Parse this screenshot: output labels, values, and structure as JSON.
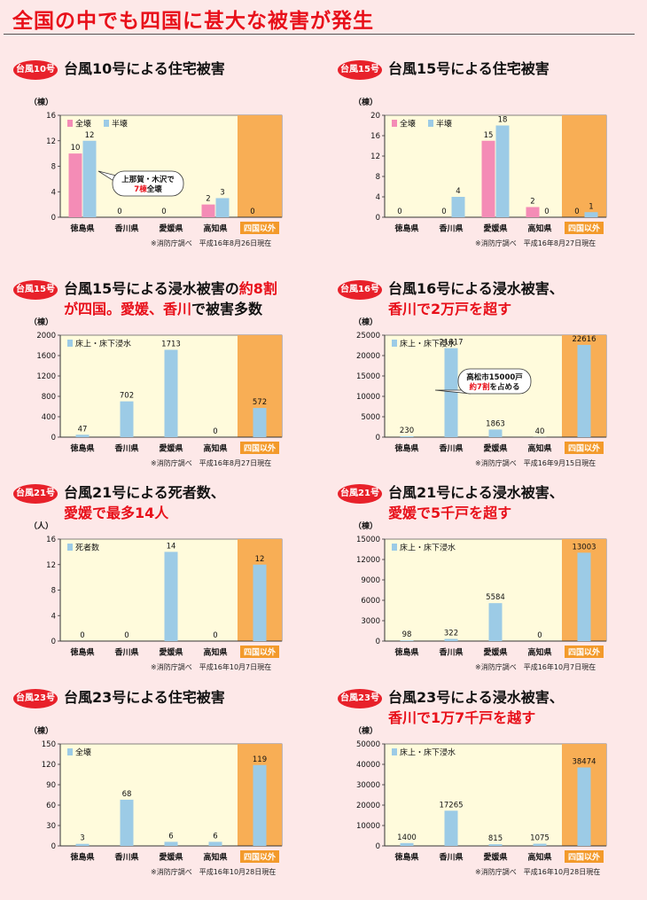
{
  "page_title": "全国の中でも四国に甚大な被害が発生",
  "source_prefix": "※消防庁調べ",
  "panels": [
    {
      "badge": "台風10号",
      "heading_parts": [
        {
          "t": "台風10号による住宅被害",
          "red": false
        }
      ],
      "source_date": "平成16年8月26日現在",
      "chart_data": {
        "type": "bar",
        "unit_label": "（棟）",
        "categories": [
          "徳島県",
          "香川県",
          "愛媛県",
          "高知県",
          "四国以外"
        ],
        "ylim": [
          0,
          16
        ],
        "yticks": [
          0,
          4,
          8,
          12,
          16
        ],
        "series": [
          {
            "name": "全壊",
            "color": "#f48cb6",
            "values": [
              10,
              0,
              0,
              2,
              0
            ]
          },
          {
            "name": "半壊",
            "color": "#9ccbe6",
            "values": [
              12,
              null,
              null,
              3,
              null
            ]
          }
        ],
        "annotation": {
          "lines": [
            [
              {
                "t": "上那賀・木沢で",
                "red": false
              }
            ],
            [
              {
                "t": "7棟",
                "red": true
              },
              {
                "t": "全壊",
                "red": false
              }
            ]
          ]
        }
      }
    },
    {
      "badge": "台風15号",
      "heading_parts": [
        {
          "t": "台風15号による住宅被害",
          "red": false
        }
      ],
      "source_date": "平成16年8月27日現在",
      "chart_data": {
        "type": "bar",
        "unit_label": "（棟）",
        "categories": [
          "徳島県",
          "香川県",
          "愛媛県",
          "高知県",
          "四国以外"
        ],
        "ylim": [
          0,
          20
        ],
        "yticks": [
          0,
          4,
          8,
          12,
          16,
          20
        ],
        "series": [
          {
            "name": "全壊",
            "color": "#f48cb6",
            "values": [
              0,
              0,
              15,
              2,
              0
            ]
          },
          {
            "name": "半壊",
            "color": "#9ccbe6",
            "values": [
              null,
              4,
              18,
              0,
              1
            ]
          }
        ]
      }
    },
    {
      "badge": "台風15号",
      "heading_parts": [
        {
          "t": "台風15号による浸水被害の",
          "red": false
        },
        {
          "t": "約8割",
          "red": true
        },
        {
          "t": "\n",
          "red": false
        },
        {
          "t": "が四国。愛媛、香川",
          "red": true
        },
        {
          "t": "で被害多数",
          "red": false
        }
      ],
      "source_date": "平成16年8月27日現在",
      "chart_data": {
        "type": "bar",
        "unit_label": "（棟）",
        "categories": [
          "徳島県",
          "香川県",
          "愛媛県",
          "高知県",
          "四国以外"
        ],
        "ylim": [
          0,
          2000
        ],
        "yticks": [
          0,
          400,
          800,
          1200,
          1600,
          2000
        ],
        "series": [
          {
            "name": "床上・床下浸水",
            "color": "#9ccbe6",
            "values": [
              47,
              702,
              1713,
              0,
              572
            ]
          }
        ]
      }
    },
    {
      "badge": "台風16号",
      "heading_parts": [
        {
          "t": "台風16号による浸水被害、",
          "red": false
        },
        {
          "t": "\n",
          "red": false
        },
        {
          "t": "香川で2万戸を超す",
          "red": true
        }
      ],
      "source_date": "平成16年9月15日現在",
      "chart_data": {
        "type": "bar",
        "unit_label": "（棟）",
        "categories": [
          "徳島県",
          "香川県",
          "愛媛県",
          "高知県",
          "四国以外"
        ],
        "ylim": [
          0,
          25000
        ],
        "yticks": [
          0,
          5000,
          10000,
          15000,
          20000,
          25000
        ],
        "series": [
          {
            "name": "床上・床下浸水",
            "color": "#9ccbe6",
            "values": [
              230,
              21817,
              1863,
              40,
              22616
            ]
          }
        ],
        "annotation": {
          "lines": [
            [
              {
                "t": "高松市15000戸",
                "red": false
              }
            ],
            [
              {
                "t": "約7割",
                "red": true
              },
              {
                "t": "を占める",
                "red": false
              }
            ]
          ]
        }
      }
    },
    {
      "badge": "台風21号",
      "heading_parts": [
        {
          "t": "台風21号による死者数、",
          "red": false
        },
        {
          "t": "\n",
          "red": false
        },
        {
          "t": "愛媛で最多14人",
          "red": true
        }
      ],
      "source_date": "平成16年10月7日現在",
      "chart_data": {
        "type": "bar",
        "unit_label": "（人）",
        "categories": [
          "徳島県",
          "香川県",
          "愛媛県",
          "高知県",
          "四国以外"
        ],
        "ylim": [
          0,
          16
        ],
        "yticks": [
          0,
          4,
          8,
          12,
          16
        ],
        "series": [
          {
            "name": "死者数",
            "color": "#9ccbe6",
            "values": [
              0,
              0,
              14,
              0,
              12
            ]
          }
        ]
      }
    },
    {
      "badge": "台風21号",
      "heading_parts": [
        {
          "t": "台風21号による浸水被害、",
          "red": false
        },
        {
          "t": "\n",
          "red": false
        },
        {
          "t": "愛媛で5千戸を超す",
          "red": true
        }
      ],
      "source_date": "平成16年10月7日現在",
      "chart_data": {
        "type": "bar",
        "unit_label": "（棟）",
        "categories": [
          "徳島県",
          "香川県",
          "愛媛県",
          "高知県",
          "四国以外"
        ],
        "ylim": [
          0,
          15000
        ],
        "yticks": [
          0,
          3000,
          6000,
          9000,
          12000,
          15000
        ],
        "series": [
          {
            "name": "床上・床下浸水",
            "color": "#9ccbe6",
            "values": [
              98,
              322,
              5584,
              0,
              13003
            ]
          }
        ]
      }
    },
    {
      "badge": "台風23号",
      "heading_parts": [
        {
          "t": "台風23号による住宅被害",
          "red": false
        }
      ],
      "source_date": "平成16年10月28日現在",
      "chart_data": {
        "type": "bar",
        "unit_label": "（棟）",
        "categories": [
          "徳島県",
          "香川県",
          "愛媛県",
          "高知県",
          "四国以外"
        ],
        "ylim": [
          0,
          150
        ],
        "yticks": [
          0,
          30,
          60,
          90,
          120,
          150
        ],
        "series": [
          {
            "name": "全壊",
            "color": "#9ccbe6",
            "values": [
              3,
              68,
              6,
              6,
              119
            ]
          }
        ]
      }
    },
    {
      "badge": "台風23号",
      "heading_parts": [
        {
          "t": "台風23号による浸水被害、",
          "red": false
        },
        {
          "t": "\n",
          "red": false
        },
        {
          "t": "香川で1万7千戸を越す",
          "red": true
        }
      ],
      "source_date": "平成16年10月28日現在",
      "chart_data": {
        "type": "bar",
        "unit_label": "（棟）",
        "categories": [
          "徳島県",
          "香川県",
          "愛媛県",
          "高知県",
          "四国以外"
        ],
        "ylim": [
          0,
          50000
        ],
        "yticks": [
          0,
          10000,
          20000,
          30000,
          40000,
          50000
        ],
        "series": [
          {
            "name": "床上・床下浸水",
            "color": "#9ccbe6",
            "values": [
              1400,
              17265,
              815,
              1075,
              38474
            ]
          }
        ]
      }
    }
  ]
}
